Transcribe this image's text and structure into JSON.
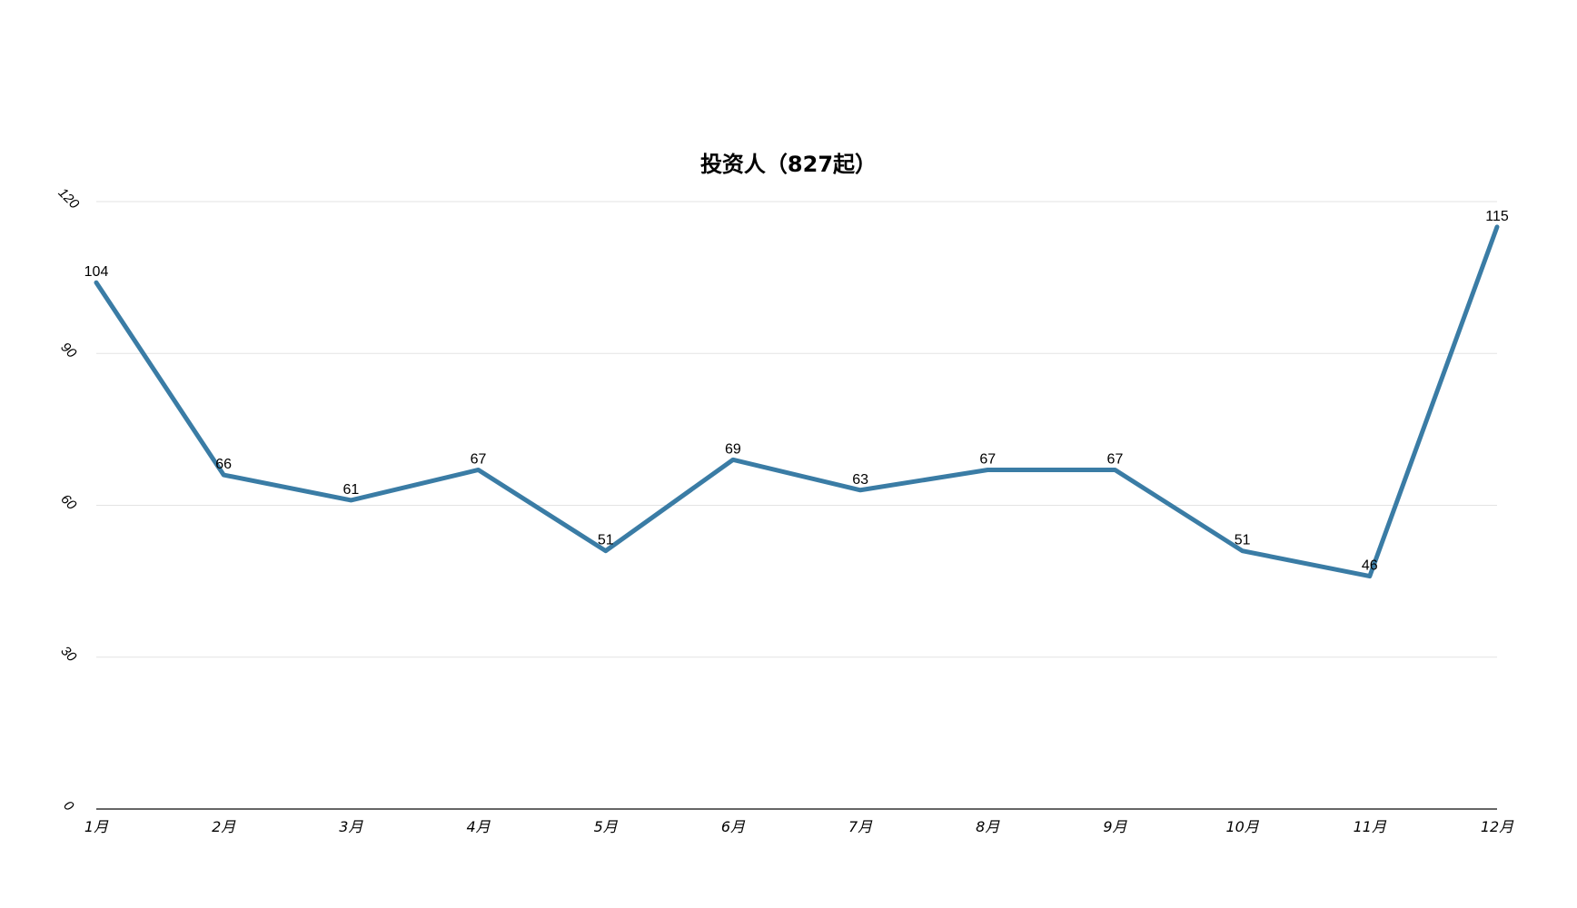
{
  "chart_data": {
    "type": "line",
    "title": "投资人（827起）",
    "xlabel": "",
    "ylabel": "",
    "categories": [
      "1月",
      "2月",
      "3月",
      "4月",
      "5月",
      "6月",
      "7月",
      "8月",
      "9月",
      "10月",
      "11月",
      "12月"
    ],
    "series": [
      {
        "values": [
          104,
          66,
          61,
          67,
          51,
          69,
          63,
          67,
          67,
          51,
          46,
          115
        ],
        "color": "#3A7CA5"
      }
    ],
    "ylim": [
      0,
      120
    ],
    "yticks": [
      0,
      30,
      60,
      90,
      120
    ],
    "grid": true,
    "data_labels": true,
    "legend": "none"
  }
}
